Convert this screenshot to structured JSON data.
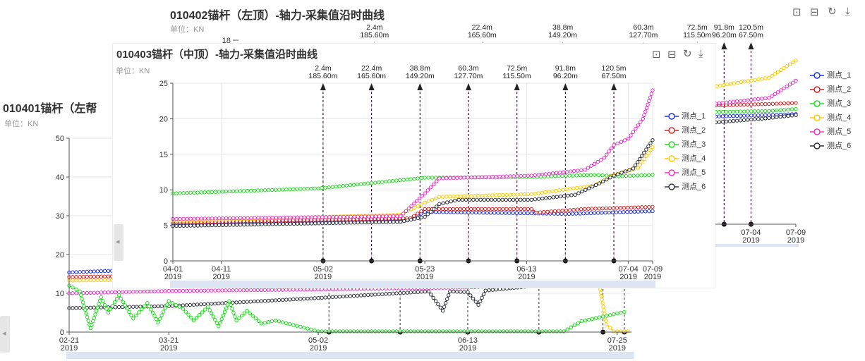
{
  "panels": {
    "left": {
      "title": "010401锚杆（左帮",
      "unit": "单位：KN",
      "chart_data": {
        "type": "line",
        "ylim": [
          0,
          50
        ],
        "yticks": [
          0,
          10,
          20,
          30,
          40,
          50
        ],
        "xlim": [
          "2019-02-21",
          "2019-07-29"
        ],
        "xticks": [
          {
            "date": "2019-02-21",
            "label": "02-21",
            "sub": "2019"
          },
          {
            "date": "2019-03-21",
            "label": "03-21",
            "sub": "2019"
          },
          {
            "date": "2019-05-02",
            "label": "05-02",
            "sub": "2019"
          },
          {
            "date": "2019-06-13",
            "label": "06-13",
            "sub": "2019"
          },
          {
            "date": "2019-07-25",
            "label": "07-25",
            "sub": "2019"
          }
        ],
        "markers": [
          "2019-05-05",
          "2019-05-25",
          "2019-06-13",
          "2019-07-03",
          "2019-07-21",
          "2019-07-27"
        ],
        "series": [
          {
            "color": "#2233dd",
            "points": [
              [
                "2019-02-21",
                15.4
              ],
              [
                "2019-03-05",
                15.8
              ],
              [
                "2019-03-21",
                16.0
              ]
            ]
          },
          {
            "color": "#dd2222",
            "points": [
              [
                "2019-02-21",
                14.2
              ],
              [
                "2019-03-21",
                14.6
              ]
            ]
          },
          {
            "color": "#ffcc00",
            "points": [
              [
                "2019-02-21",
                13.3
              ],
              [
                "2019-03-21",
                13.6
              ],
              [
                "2019-07-20",
                12.0
              ],
              [
                "2019-07-22",
                2.0
              ],
              [
                "2019-07-24",
                0.2
              ],
              [
                "2019-07-28",
                0.2
              ]
            ]
          },
          {
            "color": "#ee33cc",
            "points": [
              [
                "2019-02-21",
                10.0
              ],
              [
                "2019-03-21",
                10.6
              ],
              [
                "2019-05-02",
                11.0
              ],
              [
                "2019-06-13",
                11.5
              ],
              [
                "2019-06-25",
                12.0
              ]
            ]
          },
          {
            "color": "#33363f",
            "points": [
              [
                "2019-02-21",
                6.2
              ],
              [
                "2019-03-21",
                6.7
              ],
              [
                "2019-05-02",
                8.8
              ],
              [
                "2019-06-02",
                10.5
              ],
              [
                "2019-06-06",
                5.5
              ],
              [
                "2019-06-08",
                10.5
              ],
              [
                "2019-06-13",
                10.3
              ],
              [
                "2019-06-16",
                7.0
              ],
              [
                "2019-06-18",
                10.7
              ],
              [
                "2019-07-05",
                12.2
              ],
              [
                "2019-07-20",
                12.8
              ]
            ]
          },
          {
            "color": "#22dd22",
            "points": [
              [
                "2019-02-21",
                12.0
              ],
              [
                "2019-02-24",
                10.5
              ],
              [
                "2019-02-27",
                1.0
              ],
              [
                "2019-03-02",
                9.0
              ],
              [
                "2019-03-04",
                5.0
              ],
              [
                "2019-03-07",
                9.5
              ],
              [
                "2019-03-11",
                3.5
              ],
              [
                "2019-03-15",
                7.5
              ],
              [
                "2019-03-18",
                2.5
              ],
              [
                "2019-03-21",
                8.0
              ],
              [
                "2019-03-25",
                6.0
              ],
              [
                "2019-03-28",
                3.0
              ],
              [
                "2019-04-01",
                6.5
              ],
              [
                "2019-04-04",
                1.5
              ],
              [
                "2019-04-07",
                8.0
              ],
              [
                "2019-04-09",
                3.0
              ],
              [
                "2019-04-12",
                5.5
              ],
              [
                "2019-04-16",
                2.2
              ],
              [
                "2019-04-20",
                3.0
              ],
              [
                "2019-05-02",
                0.2
              ],
              [
                "2019-07-10",
                0.2
              ],
              [
                "2019-07-15",
                2.8
              ],
              [
                "2019-07-27",
                5.2
              ]
            ]
          }
        ]
      },
      "toolbar_icons": []
    },
    "middle": {
      "title": "010402锚杆（左顶）-轴力-采集值沿时曲线",
      "unit": "单位：KN",
      "top_tick": "18",
      "chart_data": {
        "type": "line",
        "ylim": [
          0,
          18
        ],
        "xlim": [
          "2019-04-01",
          "2019-07-09"
        ],
        "xticks": [
          {
            "date": "2019-07-04",
            "label": "07-04",
            "sub": "2019"
          },
          {
            "date": "2019-07-09",
            "label": "07-09",
            "sub": "2019"
          }
        ],
        "annotations": [
          {
            "date": "2019-05-23",
            "line1": "2.4m",
            "line2": "185.60m"
          },
          {
            "date": "2019-06-04",
            "line1": "22.4m",
            "line2": "165.60m"
          },
          {
            "date": "2019-06-13",
            "line1": "38.8m",
            "line2": "149.20m"
          },
          {
            "date": "2019-06-22",
            "line1": "60.3m",
            "line2": "127.70m"
          },
          {
            "date": "2019-06-28",
            "line1": "72.5m",
            "line2": "115.50m"
          },
          {
            "date": "2019-07-01",
            "line1": "91.8m",
            "line2": "96.20m"
          },
          {
            "date": "2019-07-04",
            "line1": "120.5m",
            "line2": "67.50m"
          }
        ],
        "series": [
          {
            "color": "#2233dd",
            "points": [
              [
                "2019-06-15",
                10.3
              ],
              [
                "2019-07-06",
                10.8
              ],
              [
                "2019-07-09",
                10.9
              ]
            ]
          },
          {
            "color": "#dd2222",
            "points": [
              [
                "2019-06-15",
                11.4
              ],
              [
                "2019-07-06",
                11.9
              ],
              [
                "2019-07-09",
                12.0
              ]
            ]
          },
          {
            "color": "#22dd22",
            "points": [
              [
                "2019-06-15",
                10.9
              ],
              [
                "2019-07-06",
                11.2
              ],
              [
                "2019-07-09",
                11.4
              ]
            ]
          },
          {
            "color": "#ffcc00",
            "points": [
              [
                "2019-06-15",
                11.5
              ],
              [
                "2019-07-06",
                14.5
              ],
              [
                "2019-07-09",
                16.2
              ]
            ]
          },
          {
            "color": "#ee33cc",
            "points": [
              [
                "2019-06-15",
                10.5
              ],
              [
                "2019-07-06",
                12.5
              ],
              [
                "2019-07-09",
                14.2
              ]
            ]
          },
          {
            "color": "#33363f",
            "points": [
              [
                "2019-06-15",
                9.0
              ],
              [
                "2019-07-06",
                10.5
              ],
              [
                "2019-07-09",
                10.8
              ]
            ]
          }
        ]
      },
      "legend": [
        "测点_1",
        "测点_2",
        "测点_3",
        "测点_4",
        "测点_5",
        "测点_6"
      ]
    },
    "front": {
      "title": "010403锚杆（中顶）-轴力-采集值沿时曲线",
      "unit": "单位：KN",
      "chart_data": {
        "type": "line",
        "ylim": [
          0,
          25
        ],
        "yticks": [
          0,
          5,
          10,
          15,
          20,
          25
        ],
        "xlim": [
          "2019-04-01",
          "2019-07-09"
        ],
        "xticks": [
          {
            "date": "2019-04-01",
            "label": "04-01",
            "sub": "2019"
          },
          {
            "date": "2019-04-11",
            "label": "04-11",
            "sub": "2019"
          },
          {
            "date": "2019-05-02",
            "label": "05-02",
            "sub": "2019"
          },
          {
            "date": "2019-05-23",
            "label": "05-23",
            "sub": "2019"
          },
          {
            "date": "2019-06-13",
            "label": "06-13",
            "sub": "2019"
          },
          {
            "date": "2019-07-04",
            "label": "07-04",
            "sub": "2019"
          },
          {
            "date": "2019-07-09",
            "label": "07-09",
            "sub": "2019"
          }
        ],
        "annotations": [
          {
            "date": "2019-05-02",
            "line1": "2.4m",
            "line2": "185.60m"
          },
          {
            "date": "2019-05-12",
            "line1": "22.4m",
            "line2": "165.60m"
          },
          {
            "date": "2019-05-22",
            "line1": "38.8m",
            "line2": "149.20m"
          },
          {
            "date": "2019-06-01",
            "line1": "60.3m",
            "line2": "127.70m"
          },
          {
            "date": "2019-06-11",
            "line1": "72.5m",
            "line2": "115.50m"
          },
          {
            "date": "2019-06-21",
            "line1": "91.8m",
            "line2": "96.20m"
          },
          {
            "date": "2019-07-01",
            "line1": "120.5m",
            "line2": "67.50m"
          }
        ],
        "series": [
          {
            "name": "测点_1",
            "color": "#2233dd",
            "points": [
              [
                "2019-04-01",
                5.1
              ],
              [
                "2019-05-20",
                5.9
              ],
              [
                "2019-05-23",
                6.9
              ],
              [
                "2019-06-01",
                6.8
              ],
              [
                "2019-06-14",
                6.7
              ],
              [
                "2019-06-21",
                6.6
              ],
              [
                "2019-07-09",
                7.0
              ]
            ]
          },
          {
            "name": "测点_2",
            "color": "#dd2222",
            "points": [
              [
                "2019-04-01",
                5.4
              ],
              [
                "2019-05-20",
                6.0
              ],
              [
                "2019-05-23",
                7.3
              ],
              [
                "2019-06-14",
                7.3
              ],
              [
                "2019-06-15",
                6.8
              ],
              [
                "2019-06-25",
                7.3
              ],
              [
                "2019-07-09",
                7.6
              ]
            ]
          },
          {
            "name": "测点_3",
            "color": "#22dd22",
            "points": [
              [
                "2019-04-01",
                9.5
              ],
              [
                "2019-05-01",
                10.2
              ],
              [
                "2019-05-23",
                11.7
              ],
              [
                "2019-06-13",
                11.8
              ],
              [
                "2019-06-27",
                12.1
              ],
              [
                "2019-07-02",
                11.9
              ],
              [
                "2019-07-09",
                12.1
              ]
            ]
          },
          {
            "name": "测点_4",
            "color": "#ffcc00",
            "points": [
              [
                "2019-04-01",
                5.6
              ],
              [
                "2019-05-18",
                6.5
              ],
              [
                "2019-05-23",
                8.2
              ],
              [
                "2019-05-26",
                9.0
              ],
              [
                "2019-06-14",
                9.4
              ],
              [
                "2019-06-27",
                10.6
              ],
              [
                "2019-07-01",
                12.1
              ],
              [
                "2019-07-06",
                13.1
              ],
              [
                "2019-07-09",
                16.0
              ]
            ]
          },
          {
            "name": "测点_5",
            "color": "#ee33cc",
            "points": [
              [
                "2019-04-01",
                5.9
              ],
              [
                "2019-05-18",
                6.3
              ],
              [
                "2019-05-23",
                9.5
              ],
              [
                "2019-05-26",
                11.6
              ],
              [
                "2019-06-14",
                12.0
              ],
              [
                "2019-06-25",
                12.8
              ],
              [
                "2019-06-29",
                14.5
              ],
              [
                "2019-07-01",
                16.3
              ],
              [
                "2019-07-04",
                17.2
              ],
              [
                "2019-07-07",
                20.0
              ],
              [
                "2019-07-09",
                24.0
              ]
            ]
          },
          {
            "name": "测点_6",
            "color": "#33363f",
            "points": [
              [
                "2019-04-01",
                4.9
              ],
              [
                "2019-05-18",
                5.5
              ],
              [
                "2019-05-23",
                6.2
              ],
              [
                "2019-05-26",
                8.0
              ],
              [
                "2019-05-30",
                8.6
              ],
              [
                "2019-06-14",
                8.6
              ],
              [
                "2019-06-23",
                9.3
              ],
              [
                "2019-06-28",
                10.9
              ],
              [
                "2019-07-01",
                12.0
              ],
              [
                "2019-07-05",
                13.0
              ],
              [
                "2019-07-09",
                17.0
              ]
            ]
          }
        ]
      },
      "legend": [
        "测点_1",
        "测点_2",
        "测点_3",
        "测点_4",
        "测点_5",
        "测点_6"
      ]
    }
  },
  "legend_colors": [
    "#2233dd",
    "#dd2222",
    "#22dd22",
    "#ffcc00",
    "#ee33cc",
    "#33363f"
  ],
  "toolbar": {
    "icons": [
      "zoom-icon",
      "zoom-reset-icon",
      "refresh-icon",
      "download-icon"
    ],
    "glyphs": [
      "⊡",
      "⊟",
      "↻",
      "⤓"
    ]
  },
  "scroll_arrow": "◂"
}
